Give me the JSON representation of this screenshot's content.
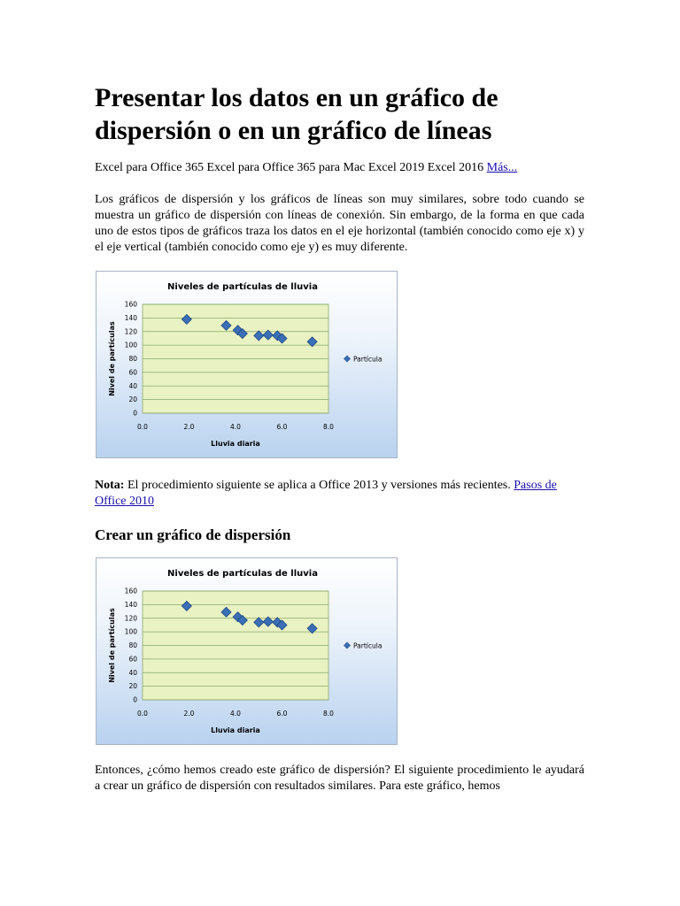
{
  "article": {
    "title": "Presentar los datos en un gráfico de dispersión o en un gráfico de líneas",
    "applies_to": "Excel para Office 365 Excel para Office 365 para Mac Excel 2019 Excel 2016",
    "more_link": "Más...",
    "intro": "Los gráficos de dispersión y los gráficos de líneas son muy similares, sobre todo cuando se muestra un gráfico de dispersión con líneas de conexión. Sin embargo, de la forma en que cada uno de estos tipos de gráficos traza los datos en el eje horizontal (también conocido como eje x) y el eje vertical (también conocido como eje y) es muy diferente.",
    "note_label": "Nota:",
    "note_text": "El procedimiento siguiente se aplica a Office 2013 y versiones más recientes.",
    "note_link": "Pasos de Office 2010",
    "section_heading": "Crear un gráfico de dispersión",
    "closing": "Entonces, ¿cómo hemos creado este gráfico de dispersión? El siguiente procedimiento le ayudará a crear un gráfico de dispersión con resultados similares. Para este gráfico, hemos"
  },
  "colors": {
    "plot_area": "#e9f2c2",
    "gridline": "#8aa86e",
    "marker": "#3b6fb6",
    "marker_edge": "#1f4a85",
    "link": "#1a0dab"
  },
  "chart_data": [
    {
      "type": "scatter",
      "title": "Niveles de partículas de lluvia",
      "xlabel": "Lluvia diaria",
      "ylabel": "Nivel de partículas",
      "xlim": [
        0,
        8
      ],
      "ylim": [
        0,
        160
      ],
      "x_ticks": [
        "0.0",
        "2.0",
        "4.0",
        "6.0",
        "8.0"
      ],
      "y_ticks": [
        "0",
        "20",
        "40",
        "60",
        "80",
        "100",
        "120",
        "140",
        "160"
      ],
      "grid": true,
      "legend": "right",
      "series": [
        {
          "name": "Partícula",
          "marker": "diamond",
          "points": [
            {
              "x": 1.9,
              "y": 138
            },
            {
              "x": 3.6,
              "y": 129
            },
            {
              "x": 4.1,
              "y": 122
            },
            {
              "x": 4.3,
              "y": 117
            },
            {
              "x": 5.0,
              "y": 114
            },
            {
              "x": 5.4,
              "y": 115
            },
            {
              "x": 5.8,
              "y": 114
            },
            {
              "x": 6.0,
              "y": 110
            },
            {
              "x": 7.3,
              "y": 105
            }
          ]
        }
      ]
    },
    {
      "type": "scatter",
      "title": "Niveles de partículas de lluvia",
      "xlabel": "Lluvia diaria",
      "ylabel": "Nivel de partículas",
      "xlim": [
        0,
        8
      ],
      "ylim": [
        0,
        160
      ],
      "x_ticks": [
        "0.0",
        "2.0",
        "4.0",
        "6.0",
        "8.0"
      ],
      "y_ticks": [
        "0",
        "20",
        "40",
        "60",
        "80",
        "100",
        "120",
        "140",
        "160"
      ],
      "grid": true,
      "legend": "right",
      "series": [
        {
          "name": "Partícula",
          "marker": "diamond",
          "points": [
            {
              "x": 1.9,
              "y": 138
            },
            {
              "x": 3.6,
              "y": 129
            },
            {
              "x": 4.1,
              "y": 122
            },
            {
              "x": 4.3,
              "y": 117
            },
            {
              "x": 5.0,
              "y": 114
            },
            {
              "x": 5.4,
              "y": 115
            },
            {
              "x": 5.8,
              "y": 114
            },
            {
              "x": 6.0,
              "y": 110
            },
            {
              "x": 7.3,
              "y": 105
            }
          ]
        }
      ]
    }
  ]
}
